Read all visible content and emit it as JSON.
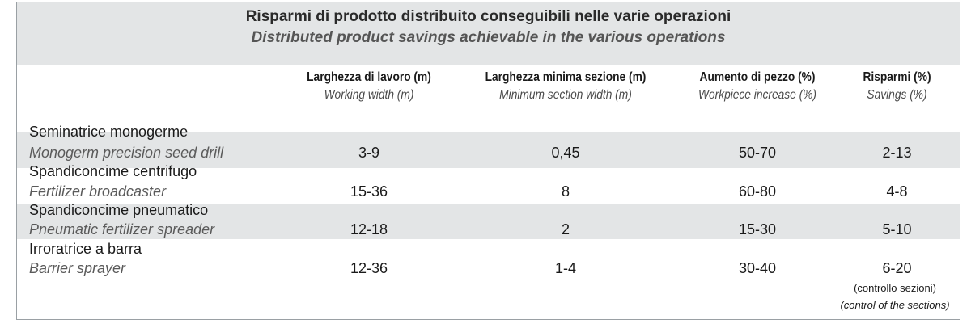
{
  "title": {
    "it": "Risparmi di prodotto distribuito conseguibili nelle varie operazioni",
    "en": "Distributed product savings achievable in the various operations"
  },
  "columns": [
    {
      "it": "Larghezza di lavoro (m)",
      "en": "Working width (m)"
    },
    {
      "it": "Larghezza minima sezione (m)",
      "en": "Minimum section width (m)"
    },
    {
      "it": "Aumento di pezzo (%)",
      "en": "Workpiece increase (%)"
    },
    {
      "it": "Risparmi (%)",
      "en": "Savings (%)"
    }
  ],
  "rows": [
    {
      "it": "Seminatrice monogerme",
      "en": "Monogerm precision seed drill",
      "values": [
        "3-9",
        "0,45",
        "50-70",
        "2-13"
      ]
    },
    {
      "it": "Spandiconcime centrifugo",
      "en": "Fertilizer broadcaster",
      "values": [
        "15-36",
        "8",
        "60-80",
        "4-8"
      ]
    },
    {
      "it": "Spandiconcime  pneumatico",
      "en": "Pneumatic fertilizer spreader",
      "values": [
        "12-18",
        "2",
        "15-30",
        "5-10"
      ]
    },
    {
      "it": "Irroratrice a barra",
      "en": "Barrier sprayer",
      "values": [
        "12-36",
        "1-4",
        "30-40",
        "6-20"
      ]
    }
  ],
  "note": {
    "it": "(controllo sezioni)",
    "en": "(control of the sections)"
  }
}
